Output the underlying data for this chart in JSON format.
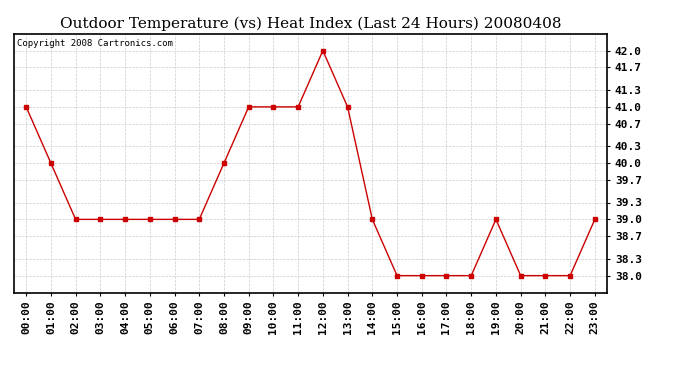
{
  "title": "Outdoor Temperature (vs) Heat Index (Last 24 Hours) 20080408",
  "copyright_text": "Copyright 2008 Cartronics.com",
  "x_labels": [
    "00:00",
    "01:00",
    "02:00",
    "03:00",
    "04:00",
    "05:00",
    "06:00",
    "07:00",
    "08:00",
    "09:00",
    "10:00",
    "11:00",
    "12:00",
    "13:00",
    "14:00",
    "15:00",
    "16:00",
    "17:00",
    "18:00",
    "19:00",
    "20:00",
    "21:00",
    "22:00",
    "23:00"
  ],
  "y_values": [
    41.0,
    40.0,
    39.0,
    39.0,
    39.0,
    39.0,
    39.0,
    39.0,
    40.0,
    41.0,
    41.0,
    41.0,
    42.0,
    41.0,
    39.0,
    38.0,
    38.0,
    38.0,
    38.0,
    39.0,
    38.0,
    38.0,
    38.0,
    39.0
  ],
  "ylim": [
    37.7,
    42.3
  ],
  "yticks": [
    38.0,
    38.3,
    38.7,
    39.0,
    39.3,
    39.7,
    40.0,
    40.3,
    40.7,
    41.0,
    41.3,
    41.7,
    42.0
  ],
  "line_color": "#cc0000",
  "marker": "s",
  "marker_size": 3,
  "background_color": "#ffffff",
  "grid_color": "#cccccc",
  "title_fontsize": 11,
  "tick_fontsize": 8,
  "copyright_fontsize": 6.5
}
